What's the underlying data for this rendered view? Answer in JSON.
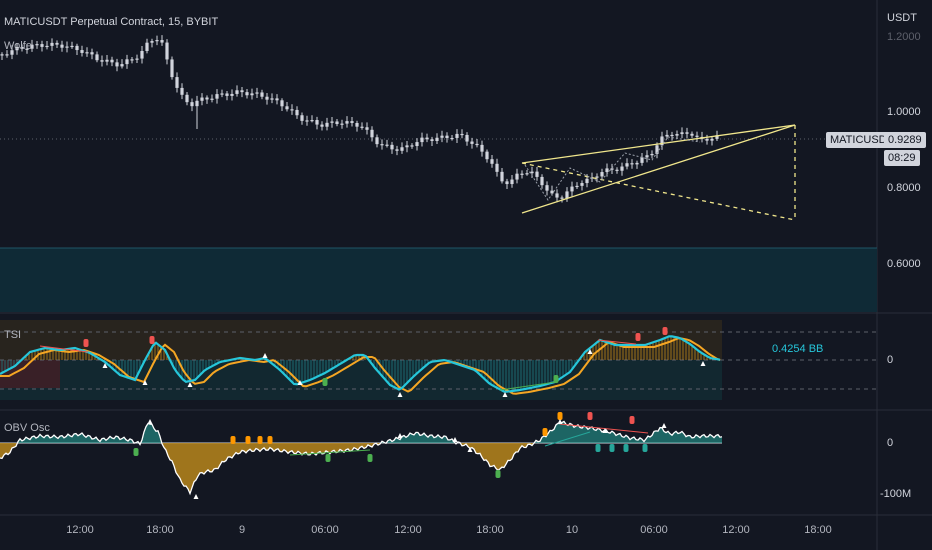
{
  "header": {
    "symbol_title": "MATICUSDT Perpetual Contract, 15, BYBIT",
    "indicator_name": "Wolfe",
    "currency": "USDT"
  },
  "price_axis": {
    "ticks": [
      "1.2000",
      "1.0000",
      "0.8000",
      "0.6000"
    ],
    "symbol_badge": "MATICUSDT.P",
    "current_price": "0.9289",
    "countdown": "08:29"
  },
  "tsi_pane": {
    "title": "TSI",
    "value_label": "0.4254 BB",
    "axis_zero": "0"
  },
  "obv_pane": {
    "title": "OBV Osc",
    "axis_zero": "0",
    "axis_bottom": "-100M"
  },
  "time_axis": {
    "labels": [
      "12:00",
      "18:00",
      "9",
      "06:00",
      "12:00",
      "18:00",
      "10",
      "06:00",
      "12:00",
      "18:00"
    ]
  },
  "colors": {
    "background": "#131722",
    "candle": "#d1d4dc",
    "wedge_line": "#f0e68c",
    "tsi_fast": "#26c6da",
    "tsi_slow": "#f5a623",
    "obv_line": "#ffffff",
    "obv_fill_pos": "#26a69a",
    "obv_fill_neg": "#b8861b",
    "bear_marker": "#ef5350",
    "bull_marker": "#4caf50",
    "orange_marker": "#ff9800"
  }
}
